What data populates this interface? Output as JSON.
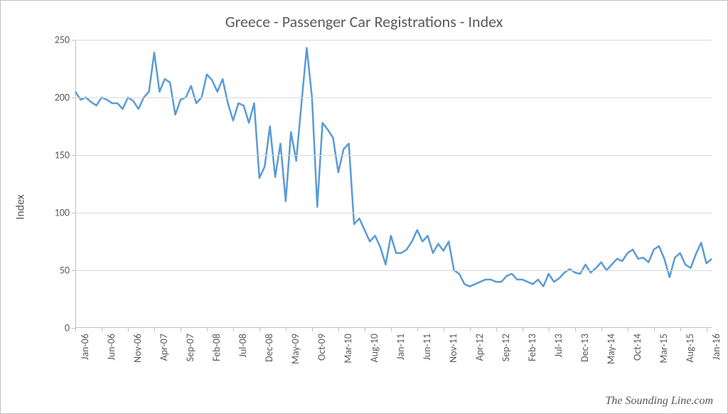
{
  "chart": {
    "type": "line",
    "title": "Greece - Passenger Car Registrations - Index",
    "title_fontsize": 22,
    "title_color": "#595959",
    "ylabel": "Index",
    "ylabel_fontsize": 16,
    "ylabel_color": "#595959",
    "ylim": [
      0,
      250
    ],
    "ytick_step": 50,
    "yticks": [
      0,
      50,
      100,
      150,
      200,
      250
    ],
    "background_color": "#ffffff",
    "grid_color": "#d9d9d9",
    "axis_color": "#bfbfbf",
    "tick_label_color": "#595959",
    "tick_label_fontsize": 14,
    "line_color": "#5b9bd5",
    "line_width": 2.5,
    "x_tick_labels": [
      "Jan-06",
      "Jun-06",
      "Nov-06",
      "Apr-07",
      "Sep-07",
      "Feb-08",
      "Jul-08",
      "Dec-08",
      "May-09",
      "Oct-09",
      "Mar-10",
      "Aug-10",
      "Jan-11",
      "Jun-11",
      "Nov-11",
      "Apr-12",
      "Sep-12",
      "Feb-13",
      "Jul-13",
      "Dec-13",
      "May-14",
      "Oct-14",
      "Mar-15",
      "Aug-15",
      "Jan-16"
    ],
    "x_tick_step": 5,
    "series": {
      "values": [
        205,
        198,
        200,
        196,
        193,
        200,
        198,
        195,
        195,
        190,
        200,
        197,
        190,
        200,
        205,
        239,
        205,
        216,
        213,
        185,
        198,
        200,
        210,
        195,
        200,
        220,
        215,
        205,
        216,
        195,
        180,
        195,
        193,
        178,
        195,
        130,
        140,
        175,
        131,
        160,
        110,
        170,
        145,
        195,
        243,
        200,
        105,
        178,
        172,
        165,
        135,
        155,
        160,
        90,
        95,
        85,
        75,
        80,
        70,
        55,
        80,
        65,
        65,
        68,
        75,
        85,
        75,
        80,
        65,
        73,
        67,
        75,
        50,
        47,
        38,
        36,
        38,
        40,
        42,
        42,
        40,
        40,
        45,
        47,
        42,
        42,
        40,
        38,
        42,
        36,
        47,
        40,
        43,
        48,
        51,
        48,
        47,
        55,
        48,
        52,
        57,
        50,
        55,
        60,
        58,
        65,
        68,
        60,
        61,
        57,
        68,
        71,
        60,
        44,
        61,
        65,
        55,
        52,
        64,
        74,
        56,
        60
      ],
      "n_points": 122
    },
    "watermark": "The Sounding Line.com",
    "watermark_font": "Georgia",
    "watermark_color": "#595959"
  }
}
